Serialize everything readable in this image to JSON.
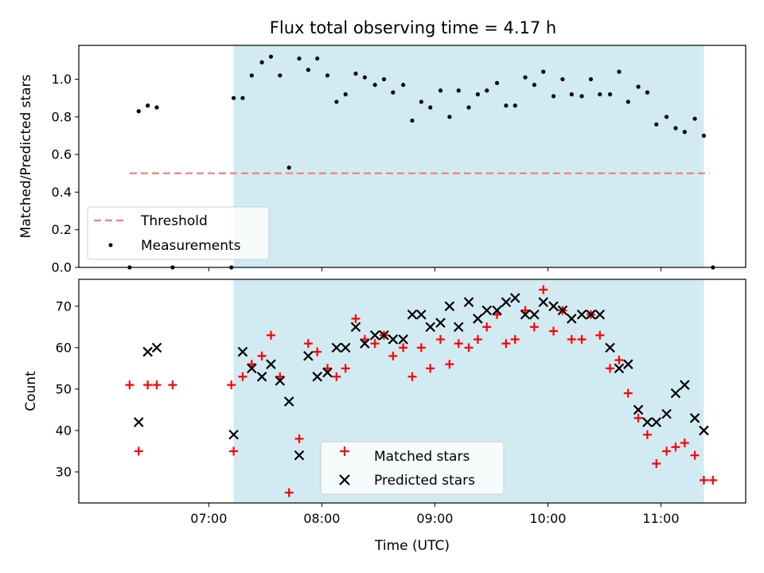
{
  "chart_data": [
    {
      "type": "scatter",
      "title": "Flux total observing time = 4.17 h",
      "ylabel": "Matched/Predicted stars",
      "xlabel": "",
      "xlim_hours": [
        5.85,
        11.75
      ],
      "ylim": [
        0,
        1.18
      ],
      "x_ticks": [
        "07:00",
        "08:00",
        "09:00",
        "10:00",
        "11:00"
      ],
      "y_ticks": [
        "0.0",
        "0.2",
        "0.4",
        "0.6",
        "0.8",
        "1.0"
      ],
      "shaded_span_hours": [
        7.22,
        11.38
      ],
      "shade_color": "#add8e6",
      "legend_position": "lower left",
      "threshold": {
        "name": "Threshold",
        "value": 0.5,
        "x_range_hours": [
          6.3,
          11.43
        ],
        "color": "#f08080",
        "style": "dashed"
      },
      "series": [
        {
          "name": "Measurements",
          "color": "#000000",
          "marker": "dot",
          "points": [
            [
              6.3,
              0.0
            ],
            [
              6.38,
              0.83
            ],
            [
              6.46,
              0.86
            ],
            [
              6.54,
              0.85
            ],
            [
              6.68,
              0.0
            ],
            [
              7.2,
              0.0
            ],
            [
              7.22,
              0.9
            ],
            [
              7.3,
              0.9
            ],
            [
              7.38,
              1.02
            ],
            [
              7.47,
              1.09
            ],
            [
              7.55,
              1.12
            ],
            [
              7.63,
              1.02
            ],
            [
              7.71,
              0.53
            ],
            [
              7.8,
              1.11
            ],
            [
              7.88,
              1.05
            ],
            [
              7.96,
              1.11
            ],
            [
              8.05,
              1.02
            ],
            [
              8.13,
              0.88
            ],
            [
              8.21,
              0.92
            ],
            [
              8.3,
              1.03
            ],
            [
              8.38,
              1.01
            ],
            [
              8.47,
              0.97
            ],
            [
              8.55,
              1.0
            ],
            [
              8.63,
              0.93
            ],
            [
              8.72,
              0.97
            ],
            [
              8.8,
              0.78
            ],
            [
              8.88,
              0.88
            ],
            [
              8.96,
              0.85
            ],
            [
              9.05,
              0.94
            ],
            [
              9.13,
              0.8
            ],
            [
              9.21,
              0.94
            ],
            [
              9.3,
              0.85
            ],
            [
              9.38,
              0.92
            ],
            [
              9.46,
              0.94
            ],
            [
              9.55,
              0.98
            ],
            [
              9.63,
              0.86
            ],
            [
              9.71,
              0.86
            ],
            [
              9.8,
              1.01
            ],
            [
              9.88,
              0.97
            ],
            [
              9.96,
              1.04
            ],
            [
              10.05,
              0.91
            ],
            [
              10.13,
              1.0
            ],
            [
              10.21,
              0.92
            ],
            [
              10.3,
              0.91
            ],
            [
              10.38,
              1.0
            ],
            [
              10.46,
              0.92
            ],
            [
              10.55,
              0.92
            ],
            [
              10.63,
              1.04
            ],
            [
              10.71,
              0.88
            ],
            [
              10.8,
              0.96
            ],
            [
              10.88,
              0.93
            ],
            [
              10.96,
              0.76
            ],
            [
              11.05,
              0.8
            ],
            [
              11.13,
              0.74
            ],
            [
              11.21,
              0.72
            ],
            [
              11.3,
              0.79
            ],
            [
              11.38,
              0.7
            ],
            [
              11.46,
              0.0
            ]
          ]
        }
      ]
    },
    {
      "type": "scatter",
      "title": "",
      "ylabel": "Count",
      "xlabel": "Time (UTC)",
      "xlim_hours": [
        5.85,
        11.75
      ],
      "ylim": [
        22.5,
        76.5
      ],
      "x_ticks": [
        "07:00",
        "08:00",
        "09:00",
        "10:00",
        "11:00"
      ],
      "y_ticks": [
        "30",
        "40",
        "50",
        "60",
        "70"
      ],
      "shaded_span_hours": [
        7.22,
        11.38
      ],
      "shade_color": "#add8e6",
      "legend_position": "lower center",
      "series": [
        {
          "name": "Matched stars",
          "color": "#ff0000",
          "marker": "plus",
          "points": [
            [
              6.3,
              51
            ],
            [
              6.38,
              35
            ],
            [
              6.46,
              51
            ],
            [
              6.54,
              51
            ],
            [
              6.68,
              51
            ],
            [
              7.2,
              51
            ],
            [
              7.22,
              35
            ],
            [
              7.3,
              53
            ],
            [
              7.38,
              56
            ],
            [
              7.47,
              58
            ],
            [
              7.55,
              63
            ],
            [
              7.63,
              53
            ],
            [
              7.71,
              25
            ],
            [
              7.8,
              38
            ],
            [
              7.88,
              61
            ],
            [
              7.96,
              59
            ],
            [
              8.05,
              55
            ],
            [
              8.13,
              53
            ],
            [
              8.21,
              55
            ],
            [
              8.3,
              67
            ],
            [
              8.38,
              62
            ],
            [
              8.47,
              61
            ],
            [
              8.55,
              63
            ],
            [
              8.63,
              58
            ],
            [
              8.72,
              60
            ],
            [
              8.8,
              53
            ],
            [
              8.88,
              60
            ],
            [
              8.96,
              55
            ],
            [
              9.05,
              62
            ],
            [
              9.13,
              56
            ],
            [
              9.21,
              61
            ],
            [
              9.3,
              60
            ],
            [
              9.38,
              62
            ],
            [
              9.46,
              65
            ],
            [
              9.55,
              68
            ],
            [
              9.63,
              61
            ],
            [
              9.71,
              62
            ],
            [
              9.8,
              69
            ],
            [
              9.88,
              65
            ],
            [
              9.96,
              74
            ],
            [
              10.05,
              64
            ],
            [
              10.13,
              69
            ],
            [
              10.21,
              62
            ],
            [
              10.3,
              62
            ],
            [
              10.38,
              68
            ],
            [
              10.46,
              63
            ],
            [
              10.55,
              55
            ],
            [
              10.63,
              57
            ],
            [
              10.71,
              49
            ],
            [
              10.8,
              43
            ],
            [
              10.88,
              39
            ],
            [
              10.96,
              32
            ],
            [
              11.05,
              35
            ],
            [
              11.13,
              36
            ],
            [
              11.21,
              37
            ],
            [
              11.3,
              34
            ],
            [
              11.38,
              28
            ],
            [
              11.46,
              28
            ]
          ]
        },
        {
          "name": "Predicted stars",
          "color": "#000000",
          "marker": "x",
          "points": [
            [
              6.38,
              42
            ],
            [
              6.46,
              59
            ],
            [
              6.54,
              60
            ],
            [
              7.22,
              39
            ],
            [
              7.3,
              59
            ],
            [
              7.38,
              55
            ],
            [
              7.47,
              53
            ],
            [
              7.55,
              56
            ],
            [
              7.63,
              52
            ],
            [
              7.71,
              47
            ],
            [
              7.8,
              34
            ],
            [
              7.88,
              58
            ],
            [
              7.96,
              53
            ],
            [
              8.05,
              54
            ],
            [
              8.13,
              60
            ],
            [
              8.21,
              60
            ],
            [
              8.3,
              65
            ],
            [
              8.38,
              61
            ],
            [
              8.47,
              63
            ],
            [
              8.55,
              63
            ],
            [
              8.63,
              62
            ],
            [
              8.72,
              62
            ],
            [
              8.8,
              68
            ],
            [
              8.88,
              68
            ],
            [
              8.96,
              65
            ],
            [
              9.05,
              66
            ],
            [
              9.13,
              70
            ],
            [
              9.21,
              65
            ],
            [
              9.3,
              71
            ],
            [
              9.38,
              67
            ],
            [
              9.46,
              69
            ],
            [
              9.55,
              69
            ],
            [
              9.63,
              71
            ],
            [
              9.71,
              72
            ],
            [
              9.8,
              68
            ],
            [
              9.88,
              68
            ],
            [
              9.96,
              71
            ],
            [
              10.05,
              70
            ],
            [
              10.13,
              69
            ],
            [
              10.21,
              67
            ],
            [
              10.3,
              68
            ],
            [
              10.38,
              68
            ],
            [
              10.46,
              68
            ],
            [
              10.55,
              60
            ],
            [
              10.63,
              55
            ],
            [
              10.71,
              56
            ],
            [
              10.8,
              45
            ],
            [
              10.88,
              42
            ],
            [
              10.96,
              42
            ],
            [
              11.05,
              44
            ],
            [
              11.13,
              49
            ],
            [
              11.21,
              51
            ],
            [
              11.3,
              43
            ],
            [
              11.38,
              40
            ]
          ]
        }
      ]
    }
  ]
}
